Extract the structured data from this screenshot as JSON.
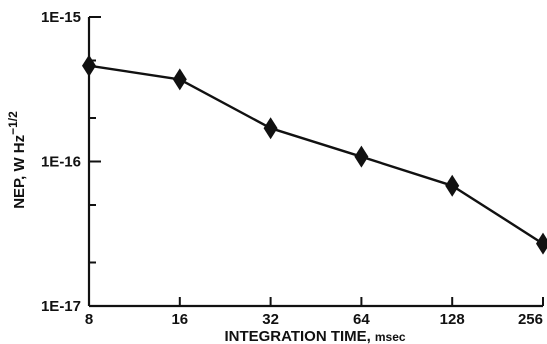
{
  "chart_data": {
    "type": "line",
    "title": "",
    "xlabel": "INTEGRATION TIME",
    "xlabel_unit": "msec",
    "xlabel_sep": ",",
    "ylabel_main": "NEP, W Hz",
    "ylabel_exp": "−1/2",
    "x_scale": "log2",
    "y_scale": "log10",
    "x_ticks": [
      "8",
      "16",
      "32",
      "64",
      "128",
      "256"
    ],
    "y_ticks": [
      "1E-17",
      "1E-16",
      "1E-15"
    ],
    "xlim": [
      8,
      256
    ],
    "ylim": [
      1e-17,
      1e-15
    ],
    "grid": false,
    "series": [
      {
        "marker": "diamond",
        "x": [
          8,
          16,
          32,
          64,
          128,
          256
        ],
        "y": [
          4.6e-16,
          3.7e-16,
          1.7e-16,
          1.08e-16,
          6.8e-17,
          2.7e-17
        ]
      }
    ]
  }
}
